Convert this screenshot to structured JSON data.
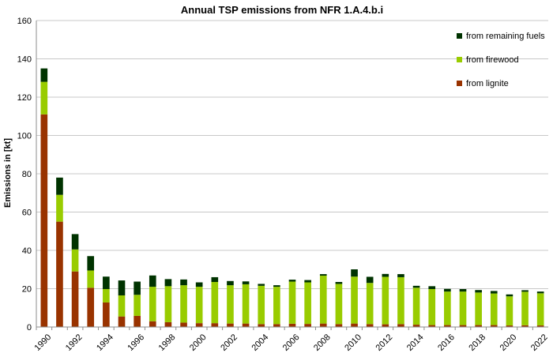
{
  "chart_data": {
    "type": "bar",
    "stacked": true,
    "title": "Annual TSP emissions from NFR 1.A.4.b.i",
    "xlabel": "",
    "ylabel": "Emissions in [kt]",
    "ylim": [
      0,
      160
    ],
    "yticks": [
      0,
      20,
      40,
      60,
      80,
      100,
      120,
      140,
      160
    ],
    "grid": true,
    "legend_position": "top-right",
    "categories": [
      "1990",
      "1991",
      "1992",
      "1993",
      "1994",
      "1995",
      "1996",
      "1997",
      "1998",
      "1999",
      "2000",
      "2001",
      "2002",
      "2003",
      "2004",
      "2005",
      "2006",
      "2007",
      "2008",
      "2009",
      "2010",
      "2011",
      "2012",
      "2013",
      "2014",
      "2015",
      "2016",
      "2017",
      "2018",
      "2019",
      "2020",
      "2021",
      "2022"
    ],
    "xtick_labels": [
      "1990",
      "1992",
      "1994",
      "1996",
      "1998",
      "2000",
      "2002",
      "2004",
      "2006",
      "2008",
      "2010",
      "2012",
      "2014",
      "2016",
      "2018",
      "2020",
      "2022"
    ],
    "series": [
      {
        "name": "from lignite",
        "color": "#993300",
        "values": [
          111.0,
          55.0,
          29.0,
          20.5,
          12.8,
          5.5,
          5.8,
          3.0,
          2.5,
          2.3,
          2.0,
          2.0,
          1.8,
          1.8,
          1.5,
          1.5,
          1.7,
          1.6,
          1.8,
          1.5,
          1.8,
          1.5,
          1.4,
          1.5,
          1.2,
          1.0,
          1.0,
          1.0,
          1.0,
          1.0,
          0.8,
          0.9,
          0.8
        ]
      },
      {
        "name": "from firewood",
        "color": "#99CC00",
        "values": [
          17.0,
          14.0,
          11.5,
          9.0,
          7.0,
          11.0,
          11.0,
          18.0,
          18.8,
          19.5,
          19.0,
          21.5,
          20.0,
          20.5,
          20.0,
          19.5,
          22.0,
          21.7,
          25.0,
          21.0,
          24.5,
          21.5,
          24.8,
          24.5,
          19.3,
          18.8,
          17.5,
          17.5,
          17.0,
          16.5,
          15.2,
          17.5,
          16.8
        ]
      },
      {
        "name": "from remaining fuels",
        "color": "#003300",
        "values": [
          7.0,
          9.0,
          8.0,
          7.5,
          6.5,
          7.8,
          6.9,
          5.9,
          3.7,
          3.0,
          2.3,
          2.5,
          2.2,
          1.5,
          1.0,
          0.8,
          1.0,
          1.2,
          0.8,
          1.0,
          3.8,
          3.2,
          1.5,
          1.6,
          1.0,
          1.5,
          1.4,
          1.3,
          1.3,
          1.3,
          1.0,
          0.8,
          0.9
        ]
      }
    ]
  }
}
